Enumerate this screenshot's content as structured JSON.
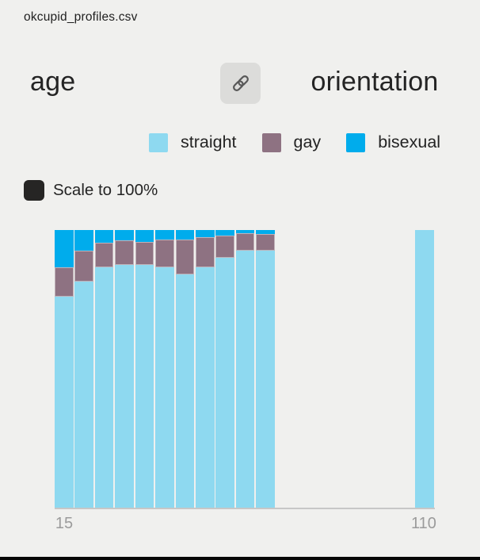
{
  "file": {
    "name": "okcupid_profiles.csv"
  },
  "header": {
    "x_field": "age",
    "y_field": "orientation",
    "link_button": "link-columns"
  },
  "legend": {
    "items": [
      {
        "label": "straight",
        "color": "#8ed9f0"
      },
      {
        "label": "gay",
        "color": "#8e7282"
      },
      {
        "label": "bisexual",
        "color": "#00acec"
      }
    ]
  },
  "controls": {
    "scale_label": "Scale to 100%",
    "scale_checked": true,
    "checkbox_color": "#262524"
  },
  "chart_data": {
    "type": "bar",
    "stacked": true,
    "normalized_to_100_percent": true,
    "x_field": "age",
    "color_field": "orientation",
    "x_axis_range": [
      15,
      110
    ],
    "x_ticks": [
      "15",
      "110"
    ],
    "bin_width_years": 5,
    "categories": [
      "15-20",
      "20-25",
      "25-30",
      "30-35",
      "35-40",
      "40-45",
      "45-50",
      "50-55",
      "55-60",
      "60-65",
      "65-70",
      "110"
    ],
    "series": [
      {
        "name": "straight",
        "color": "#8ed9f0",
        "values": [
          76,
          81.5,
          86.5,
          87.5,
          87.5,
          86.5,
          84,
          86.5,
          90,
          92.5,
          92.5,
          100
        ]
      },
      {
        "name": "gay",
        "color": "#8e7282",
        "values": [
          10.5,
          11,
          9,
          8.8,
          8.3,
          10,
          12.5,
          11,
          8,
          6.5,
          6,
          0
        ]
      },
      {
        "name": "bisexual",
        "color": "#00acec",
        "values": [
          13.5,
          7.5,
          4.5,
          3.7,
          4.2,
          3.5,
          3.5,
          2.5,
          2,
          1,
          1.5,
          0
        ]
      }
    ],
    "ylim": [
      0,
      100
    ],
    "legend_position": "top",
    "grid": false
  }
}
